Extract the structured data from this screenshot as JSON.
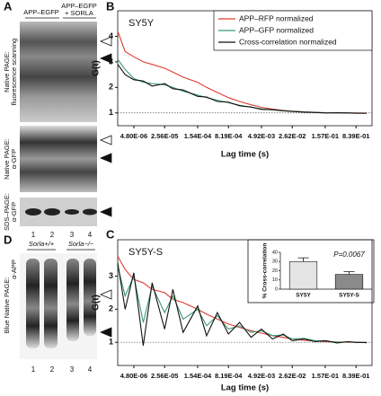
{
  "panel_labels": [
    "A",
    "B",
    "C",
    "D"
  ],
  "gel_a": {
    "headers": [
      "APP–EGFP",
      "APP–EGFP",
      "+ SORLA"
    ],
    "side_labels": [
      "Native PAGE:",
      "fluorescence scanning",
      "Native PAGE:",
      "α-GFP",
      "SDS–PAGE:",
      "α-GFP"
    ],
    "lanes": [
      "1",
      "2",
      "3",
      "4"
    ]
  },
  "gel_d": {
    "headers": [
      "Sorla+/+",
      "Sorla−/−"
    ],
    "side_labels": [
      "Blue Native PAGE:",
      "α-APP"
    ],
    "lanes": [
      "1",
      "2",
      "3",
      "4"
    ]
  },
  "chart_data": [
    {
      "type": "line",
      "title": "SY5Y",
      "x_label": "Lag time (s)",
      "y_label": "G(t)",
      "xscale": "log",
      "xlim": [
        2e-06,
        2
      ],
      "ylim": [
        0.5,
        5
      ],
      "xticks": [
        {
          "value": 4.8e-06,
          "label": "4.80E-06"
        },
        {
          "value": 2.56e-05,
          "label": "2.56E-05"
        },
        {
          "value": 0.000154,
          "label": "1.54E-04"
        },
        {
          "value": 0.000819,
          "label": "8.19E-04"
        },
        {
          "value": 0.00492,
          "label": "4.92E-03"
        },
        {
          "value": 0.0262,
          "label": "2.62E-02"
        },
        {
          "value": 0.157,
          "label": "1.57E-01"
        },
        {
          "value": 0.839,
          "label": "8.39E-01"
        }
      ],
      "yticks": [
        1,
        2,
        3,
        4
      ],
      "hline": 1,
      "legend": "upper right",
      "x": [
        2e-06,
        3e-06,
        4.8e-06,
        8e-06,
        1.3e-05,
        2.56e-05,
        4e-05,
        7e-05,
        0.000154,
        0.00025,
        0.00045,
        0.000819,
        0.0015,
        0.0028,
        0.00492,
        0.009,
        0.016,
        0.0262,
        0.05,
        0.09,
        0.157,
        0.3,
        0.55,
        0.839,
        1.5
      ],
      "series": [
        {
          "name": "APP–RFP normalized",
          "color": "#e03a2e",
          "values": [
            4.2,
            3.4,
            3.2,
            3.0,
            2.9,
            2.75,
            2.6,
            2.4,
            2.2,
            2.0,
            1.8,
            1.6,
            1.45,
            1.32,
            1.22,
            1.15,
            1.1,
            1.07,
            1.04,
            1.02,
            1.01,
            1.0,
            1.0,
            1.0,
            0.99
          ]
        },
        {
          "name": "APP–GFP normalized",
          "color": "#3a9a78",
          "values": [
            3.1,
            2.7,
            2.35,
            2.2,
            2.15,
            2.1,
            2.0,
            1.85,
            1.7,
            1.6,
            1.5,
            1.4,
            1.3,
            1.22,
            1.16,
            1.12,
            1.09,
            1.06,
            1.04,
            1.02,
            1.01,
            1.0,
            1.0,
            0.99,
            0.99
          ]
        },
        {
          "name": "Cross-correlation normalized",
          "color": "#111111",
          "values": [
            2.9,
            2.5,
            2.3,
            2.25,
            2.05,
            2.15,
            1.95,
            1.9,
            1.65,
            1.62,
            1.45,
            1.42,
            1.28,
            1.23,
            1.14,
            1.13,
            1.08,
            1.06,
            1.03,
            1.02,
            1.0,
            1.01,
            1.0,
            0.99,
            0.99
          ]
        }
      ]
    },
    {
      "type": "line",
      "title": "SY5Y-S",
      "x_label": "Lag time (s)",
      "y_label": "G(t)",
      "xscale": "log",
      "xlim": [
        2e-06,
        2
      ],
      "ylim": [
        0.3,
        4.1
      ],
      "xticks": [
        {
          "value": 4.8e-06,
          "label": "4.80E-06"
        },
        {
          "value": 2.56e-05,
          "label": "2.56E-05"
        },
        {
          "value": 0.000154,
          "label": "1.54E-04"
        },
        {
          "value": 0.000819,
          "label": "8.19E-04"
        },
        {
          "value": 0.00492,
          "label": "4.92E-03"
        },
        {
          "value": 0.0262,
          "label": "2.62E-02"
        },
        {
          "value": 0.157,
          "label": "1.57E-01"
        },
        {
          "value": 0.839,
          "label": "8.39E-01"
        }
      ],
      "yticks": [
        1,
        2,
        3
      ],
      "hline": 1,
      "x": [
        2e-06,
        3e-06,
        4.8e-06,
        8e-06,
        1.3e-05,
        2.56e-05,
        4e-05,
        7e-05,
        0.000154,
        0.00025,
        0.00045,
        0.000819,
        0.0015,
        0.0028,
        0.00492,
        0.009,
        0.016,
        0.0262,
        0.05,
        0.09,
        0.157,
        0.3,
        0.55,
        0.839,
        1.5
      ],
      "series": [
        {
          "color": "#e03a2e",
          "values": [
            3.6,
            3.2,
            2.9,
            2.8,
            2.6,
            2.5,
            2.3,
            2.2,
            2.0,
            1.85,
            1.7,
            1.55,
            1.45,
            1.35,
            1.28,
            1.2,
            1.15,
            1.1,
            1.06,
            1.04,
            1.02,
            1.01,
            1.0,
            1.0,
            0.99
          ]
        },
        {
          "color": "#3a9a78",
          "values": [
            3.3,
            2.4,
            3.0,
            1.6,
            2.7,
            1.9,
            2.4,
            1.7,
            2.0,
            1.5,
            1.8,
            1.4,
            1.5,
            1.3,
            1.35,
            1.2,
            1.22,
            1.1,
            1.12,
            1.05,
            1.05,
            1.0,
            1.02,
            0.99,
            1.0
          ]
        },
        {
          "color": "#111111",
          "values": [
            3.4,
            2.0,
            3.1,
            0.9,
            2.8,
            1.4,
            2.6,
            1.3,
            2.1,
            1.2,
            1.9,
            1.25,
            1.6,
            1.15,
            1.4,
            1.1,
            1.25,
            1.05,
            1.1,
            1.02,
            1.05,
            0.98,
            1.02,
            1.0,
            0.99
          ]
        }
      ]
    },
    {
      "type": "bar",
      "y_label": "% Cross-correlation",
      "annotation": "P=0.0067",
      "categories": [
        "SY5Y",
        "SY5Y-S"
      ],
      "values": [
        30,
        16
      ],
      "errors": [
        4,
        3
      ],
      "colors": [
        "#e4e4e4",
        "#8a8a8a"
      ],
      "ylim": [
        0,
        40
      ],
      "yticks": [
        0,
        10,
        20,
        30,
        40
      ]
    }
  ]
}
